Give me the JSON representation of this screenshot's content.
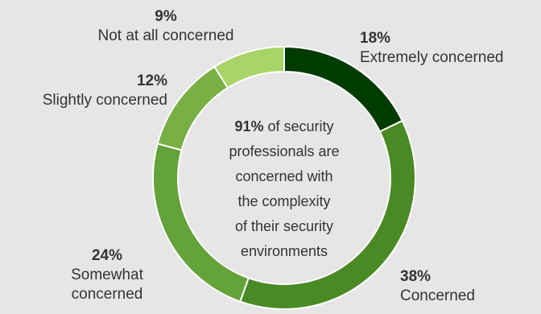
{
  "chart_data": {
    "type": "pie",
    "slices": [
      {
        "label": "Extremely concerned",
        "value": 18,
        "value_label": "18%",
        "color": "#003b00"
      },
      {
        "label": "Concerned",
        "value": 38,
        "value_label": "38%",
        "color": "#4a8a25"
      },
      {
        "label": "Somewhat concerned",
        "value": 24,
        "value_label": "24%",
        "color": "#64a23a"
      },
      {
        "label": "Slightly concerned",
        "value": 12,
        "value_label": "12%",
        "color": "#78b046"
      },
      {
        "label": "Not at all concerned",
        "value": 9,
        "value_label": "9%",
        "color": "#a8d468"
      }
    ],
    "center": {
      "highlight": "91%",
      "text_lines": [
        " of security",
        "professionals are",
        "concerned with",
        "the complexity",
        "of their security",
        "environments"
      ]
    }
  },
  "labels": {
    "extremely": {
      "pct": "18%",
      "line1": "Extremely concerned"
    },
    "concerned": {
      "pct": "38%",
      "line1": "Concerned"
    },
    "somewhat": {
      "pct": "24%",
      "line1": "Somewhat",
      "line2": "concerned"
    },
    "slightly": {
      "pct": "12%",
      "line1": "Slightly concerned"
    },
    "notatall": {
      "pct": "9%",
      "line1": "Not at all concerned"
    }
  },
  "colors": {
    "background": "#e6e6e6",
    "gap": "#ffffff"
  }
}
